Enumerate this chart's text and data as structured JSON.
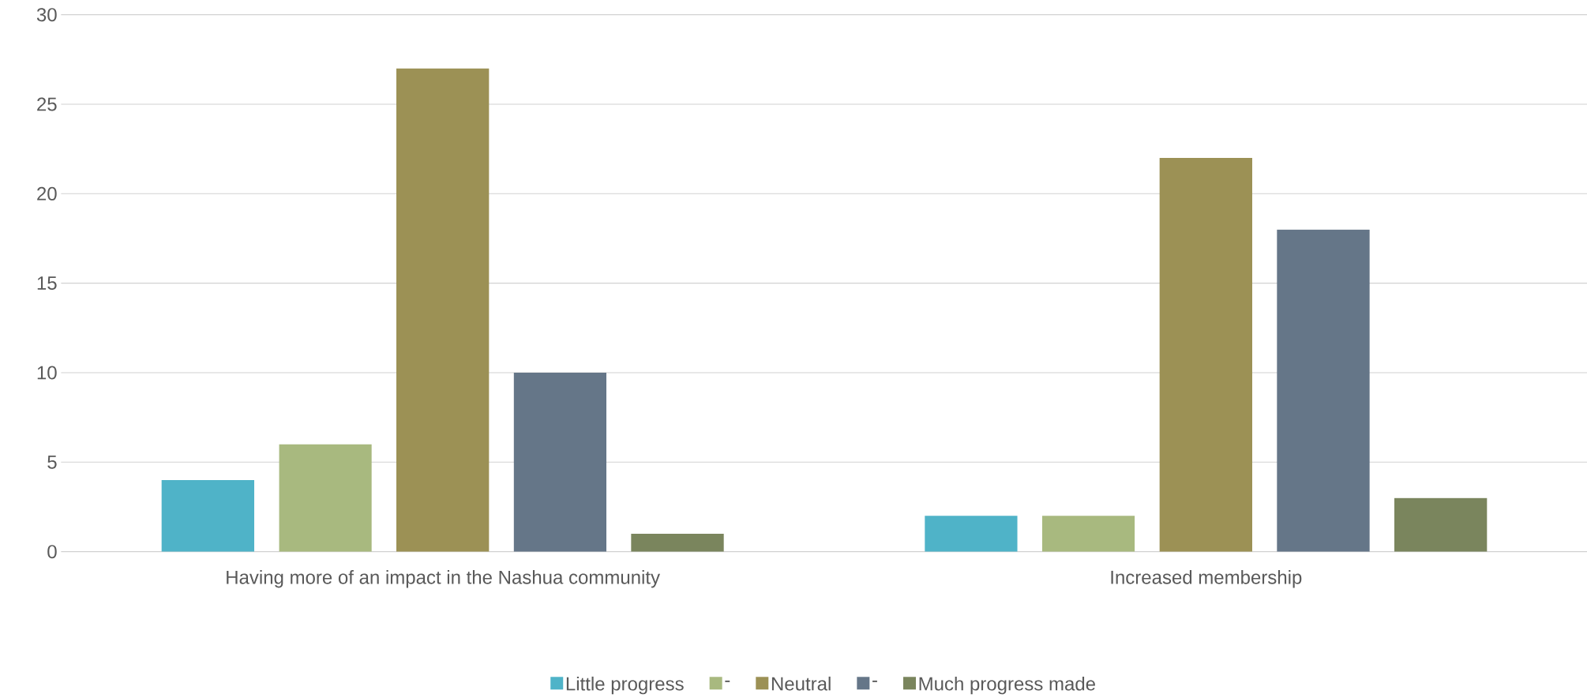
{
  "chart_data": {
    "type": "bar",
    "categories": [
      "Having more of an impact in the Nashua community",
      "Increased membership"
    ],
    "series": [
      {
        "name": "Little progress",
        "color": "#4fb3c8",
        "values": [
          4,
          2
        ]
      },
      {
        "name": "-",
        "color": "#a8b97f",
        "values": [
          6,
          2
        ]
      },
      {
        "name": "Neutral",
        "color": "#9c9155",
        "values": [
          27,
          22
        ]
      },
      {
        "name": "-",
        "color": "#657688",
        "values": [
          10,
          18
        ]
      },
      {
        "name": "Much progress made",
        "color": "#7a855d",
        "values": [
          1,
          3
        ]
      }
    ],
    "ylim": [
      0,
      30
    ],
    "yticks": [
      0,
      5,
      10,
      15,
      20,
      25,
      30
    ],
    "grid": "y",
    "legend": "bottom"
  }
}
